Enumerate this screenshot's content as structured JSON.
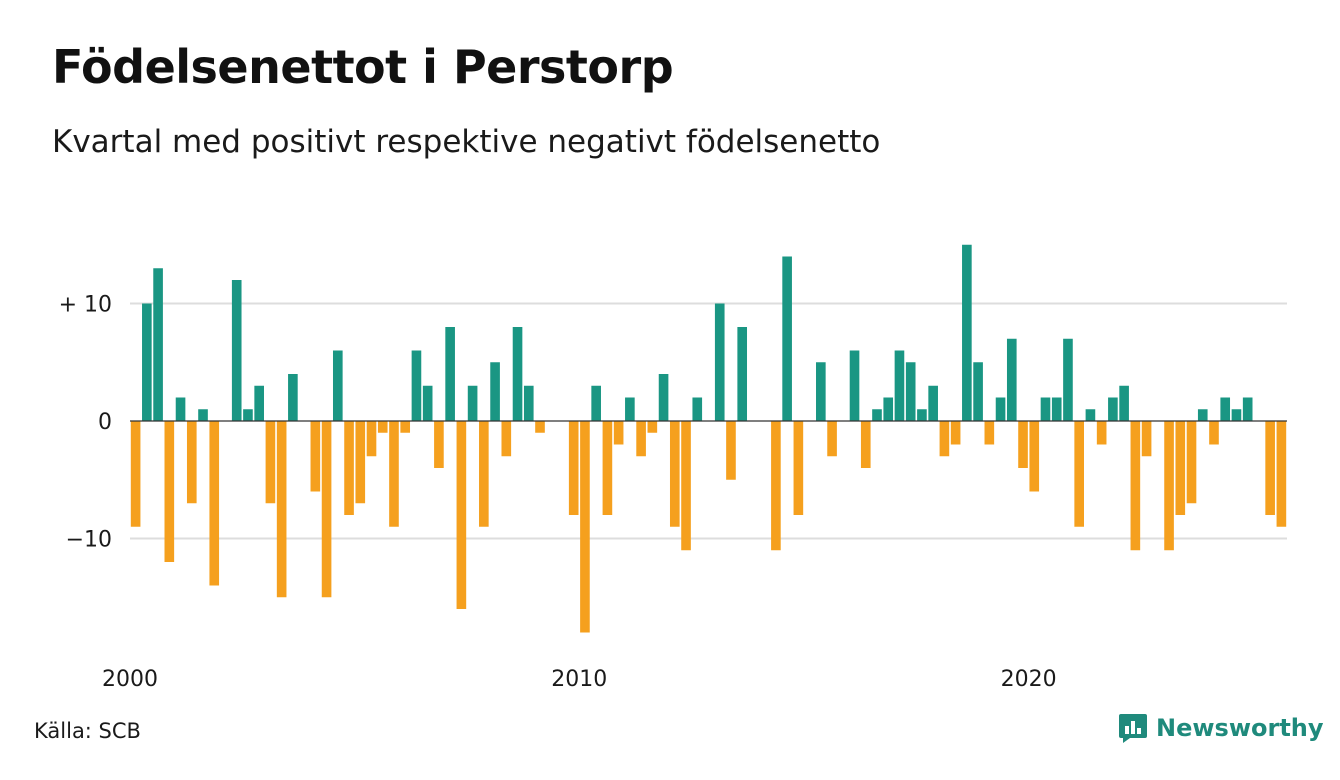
{
  "header": {
    "title": "Födelsenettot i Perstorp",
    "subtitle": "Kvartal med positivt respektive negativt födelsenetto"
  },
  "footer": {
    "source": "Källa: SCB",
    "brand": "Newsworthy",
    "brand_icon": "bar-chart-logo-icon"
  },
  "colors": {
    "positive": "#1a9683",
    "negative": "#f5a01e",
    "grid": "#dddddd",
    "zero": "#333333",
    "brand": "#1f8a7c"
  },
  "chart_data": {
    "type": "bar",
    "x_start": "2000 Q1",
    "x_ticks": [
      {
        "label": "2000",
        "year": 2000
      },
      {
        "label": "2010",
        "year": 2010
      },
      {
        "label": "2020",
        "year": 2020
      }
    ],
    "y_ticks": [
      {
        "label": "+ 10",
        "value": 10
      },
      {
        "label": "0",
        "value": 0
      },
      {
        "label": "−10",
        "value": -10
      }
    ],
    "ylim": [
      -19,
      16
    ],
    "grid": true,
    "values": [
      -9,
      10,
      13,
      -12,
      2,
      -7,
      1,
      -14,
      0,
      12,
      1,
      3,
      -7,
      -15,
      4,
      0,
      -6,
      -15,
      6,
      -8,
      -7,
      -3,
      -1,
      -9,
      -1,
      6,
      3,
      -4,
      8,
      -16,
      3,
      -9,
      5,
      -3,
      8,
      3,
      -1,
      0,
      0,
      -8,
      -18,
      3,
      -8,
      -2,
      2,
      -3,
      -1,
      4,
      -9,
      -11,
      2,
      0,
      10,
      -5,
      8,
      0,
      0,
      -11,
      14,
      -8,
      0,
      5,
      -3,
      0,
      6,
      -4,
      1,
      2,
      6,
      5,
      1,
      3,
      -3,
      -2,
      15,
      5,
      -2,
      2,
      7,
      -4,
      -6,
      2,
      2,
      7,
      -9,
      1,
      -2,
      2,
      3,
      -11,
      -3,
      0,
      -11,
      -8,
      -7,
      1,
      -2,
      2,
      1,
      2,
      0,
      -8,
      -9
    ]
  }
}
